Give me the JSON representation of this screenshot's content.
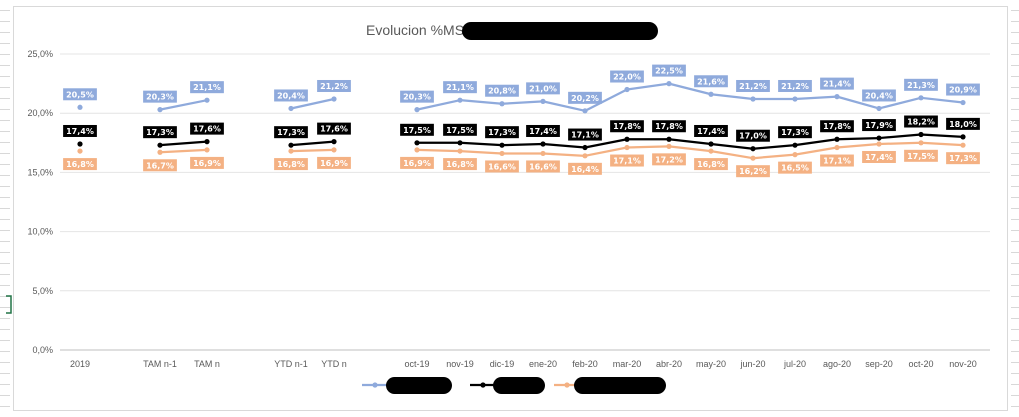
{
  "chart_data": {
    "type": "line",
    "title": "Evolucion %MS",
    "yticks": [
      "0,0%",
      "5,0%",
      "10,0%",
      "15,0%",
      "20,0%",
      "25,0%"
    ],
    "ylim": [
      0,
      25
    ],
    "grid": true,
    "legend_position": "bottom",
    "categories": [
      "2019",
      "TAM n-1",
      "TAM n",
      "YTD n-1",
      "YTD n",
      "oct-19",
      "nov-19",
      "dic-19",
      "ene-20",
      "feb-20",
      "mar-20",
      "abr-20",
      "may-20",
      "jun-20",
      "jul-20",
      "ago-20",
      "sep-20",
      "oct-20",
      "nov-20"
    ],
    "groups": [
      [
        0
      ],
      [
        1,
        2
      ],
      [
        3,
        4
      ],
      [
        5,
        6,
        7,
        8,
        9,
        10,
        11,
        12,
        13,
        14,
        15,
        16,
        17,
        18
      ]
    ],
    "series": [
      {
        "color": "#8faadc",
        "label_bg": "#8faadc",
        "label_fg": "#ffffff",
        "values": [
          20.5,
          20.3,
          21.1,
          20.4,
          21.2,
          20.3,
          21.1,
          20.8,
          21.0,
          20.2,
          22.0,
          22.5,
          21.6,
          21.2,
          21.2,
          21.4,
          20.4,
          21.3,
          20.9
        ],
        "labels": [
          "20,5%",
          "20,3%",
          "21,1%",
          "20,4%",
          "21,2%",
          "20,3%",
          "21,1%",
          "20,8%",
          "21,0%",
          "20,2%",
          "22,0%",
          "22,5%",
          "21,6%",
          "21,2%",
          "21,2%",
          "21,4%",
          "20,4%",
          "21,3%",
          "20,9%"
        ]
      },
      {
        "color": "#000000",
        "label_bg": "#000000",
        "label_fg": "#ffffff",
        "values": [
          17.4,
          17.3,
          17.6,
          17.3,
          17.6,
          17.5,
          17.5,
          17.3,
          17.4,
          17.1,
          17.8,
          17.8,
          17.4,
          17.0,
          17.3,
          17.8,
          17.9,
          18.2,
          18.0
        ],
        "labels": [
          "17,4%",
          "17,3%",
          "17,6%",
          "17,3%",
          "17,6%",
          "17,5%",
          "17,5%",
          "17,3%",
          "17,4%",
          "17,1%",
          "17,8%",
          "17,8%",
          "17,4%",
          "17,0%",
          "17,3%",
          "17,8%",
          "17,9%",
          "18,2%",
          "18,0%"
        ]
      },
      {
        "color": "#f4b183",
        "label_bg": "#f4b183",
        "label_fg": "#ffffff",
        "values": [
          16.8,
          16.7,
          16.9,
          16.8,
          16.9,
          16.9,
          16.8,
          16.6,
          16.6,
          16.4,
          17.1,
          17.2,
          16.8,
          16.2,
          16.5,
          17.1,
          17.4,
          17.5,
          17.3
        ],
        "labels": [
          "16,8%",
          "16,7%",
          "16,9%",
          "16,8%",
          "16,9%",
          "16,9%",
          "16,8%",
          "16,6%",
          "16,6%",
          "16,4%",
          "17,1%",
          "17,2%",
          "16,8%",
          "16,2%",
          "16,5%",
          "17,1%",
          "17,4%",
          "17,5%",
          "17,3%"
        ]
      }
    ]
  }
}
